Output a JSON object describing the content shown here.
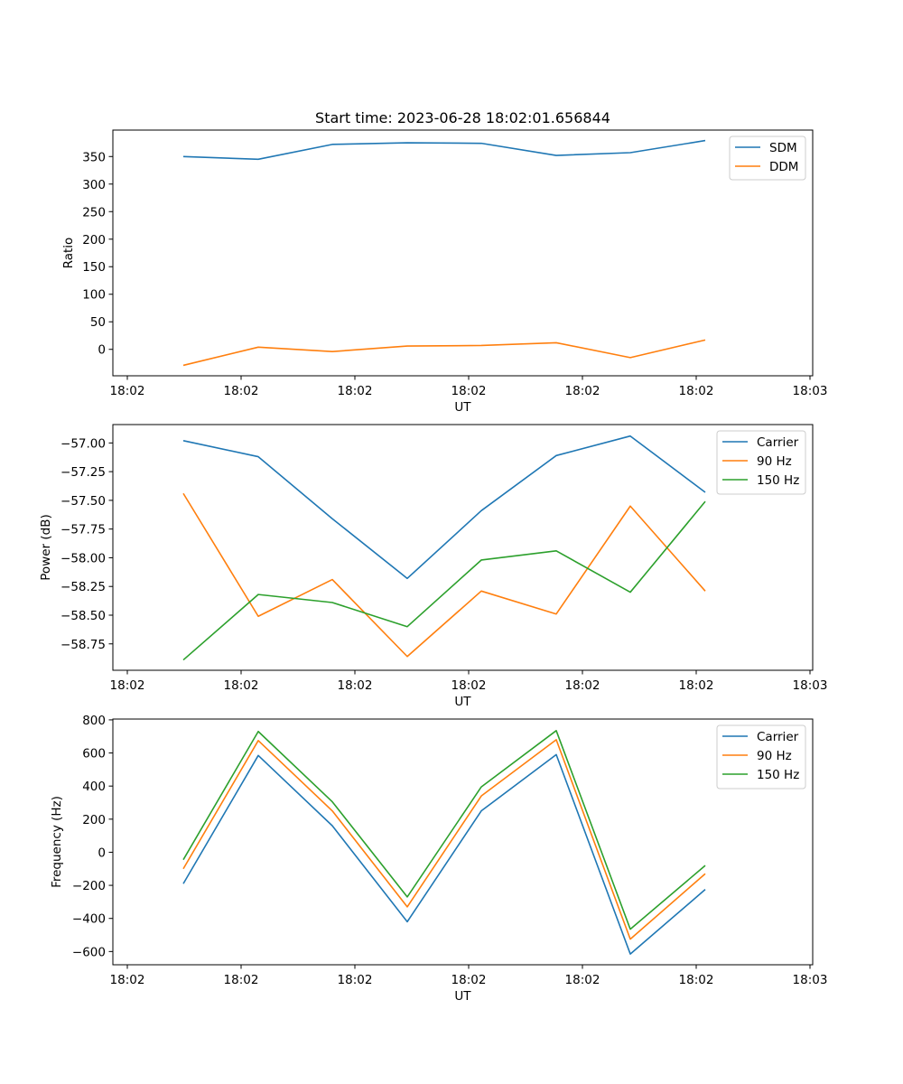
{
  "figure_title": "Start time: 2023-06-28 18:02:01.656844",
  "chart_data": [
    {
      "type": "line",
      "title": "Start time: 2023-06-28 18:02:01.656844",
      "xlabel": "UT",
      "ylabel": "Ratio",
      "x_ticks": [
        "18:02",
        "18:02",
        "18:02",
        "18:02",
        "18:02",
        "18:02",
        "18:03"
      ],
      "y_ticks": [
        0,
        50,
        100,
        150,
        200,
        250,
        300,
        350
      ],
      "ylim": [
        -48,
        398
      ],
      "grid": false,
      "legend": "upper right",
      "series": [
        {
          "name": "SDM",
          "color": "#1f77b4",
          "values": [
            350,
            345,
            372,
            375,
            374,
            352,
            357,
            379
          ]
        },
        {
          "name": "DDM",
          "color": "#ff7f0e",
          "values": [
            -29,
            4,
            -4,
            6,
            7,
            12,
            -15,
            17
          ]
        }
      ]
    },
    {
      "type": "line",
      "title": "",
      "xlabel": "UT",
      "ylabel": "Power (dB)",
      "x_ticks": [
        "18:02",
        "18:02",
        "18:02",
        "18:02",
        "18:02",
        "18:02",
        "18:03"
      ],
      "y_ticks": [
        -57.0,
        -57.25,
        -57.5,
        -57.75,
        -58.0,
        -58.25,
        -58.5,
        -58.75
      ],
      "y_tick_labels": [
        "−57.00",
        "−57.25",
        "−57.50",
        "−57.75",
        "−58.00",
        "−58.25",
        "−58.50",
        "−58.75"
      ],
      "ylim": [
        -58.98,
        -56.84
      ],
      "grid": false,
      "legend": "upper right",
      "series": [
        {
          "name": "Carrier",
          "color": "#1f77b4",
          "values": [
            -56.98,
            -57.12,
            -57.66,
            -58.18,
            -57.59,
            -57.11,
            -56.94,
            -57.43
          ]
        },
        {
          "name": "90 Hz",
          "color": "#ff7f0e",
          "values": [
            -57.44,
            -58.51,
            -58.19,
            -58.86,
            -58.29,
            -58.49,
            -57.55,
            -58.29
          ]
        },
        {
          "name": "150 Hz",
          "color": "#2ca02c",
          "values": [
            -58.89,
            -58.32,
            -58.39,
            -58.6,
            -58.02,
            -57.94,
            -58.3,
            -57.51
          ]
        }
      ]
    },
    {
      "type": "line",
      "title": "",
      "xlabel": "UT",
      "ylabel": "Frequency (Hz)",
      "x_ticks": [
        "18:02",
        "18:02",
        "18:02",
        "18:02",
        "18:02",
        "18:02",
        "18:03"
      ],
      "y_ticks": [
        -600,
        -400,
        -200,
        0,
        200,
        400,
        600,
        800
      ],
      "y_tick_labels": [
        "−600",
        "−400",
        "−200",
        "0",
        "200",
        "400",
        "600",
        "800"
      ],
      "ylim": [
        -680,
        805
      ],
      "grid": false,
      "legend": "upper right",
      "series": [
        {
          "name": "Carrier",
          "color": "#1f77b4",
          "values": [
            -190,
            585,
            160,
            -420,
            250,
            590,
            -615,
            -225
          ]
        },
        {
          "name": "90 Hz",
          "color": "#ff7f0e",
          "values": [
            -100,
            675,
            250,
            -330,
            340,
            680,
            -525,
            -130
          ]
        },
        {
          "name": "150 Hz",
          "color": "#2ca02c",
          "values": [
            -45,
            730,
            305,
            -270,
            395,
            735,
            -465,
            -80
          ]
        }
      ]
    }
  ]
}
